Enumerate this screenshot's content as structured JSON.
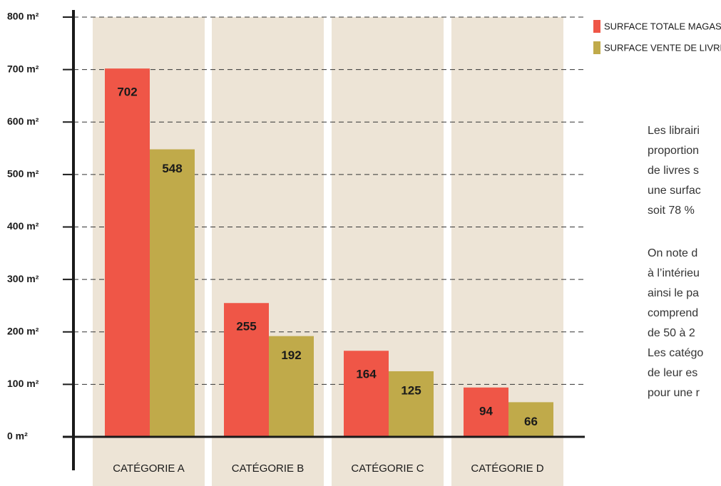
{
  "chart_data": {
    "type": "bar",
    "categories": [
      "CATÉGORIE A",
      "CATÉGORIE B",
      "CATÉGORIE C",
      "CATÉGORIE D"
    ],
    "series": [
      {
        "name": "SURFACE TOTALE MAGASIN",
        "color": "#ef5647",
        "values": [
          702,
          255,
          164,
          94
        ]
      },
      {
        "name": "SURFACE VENTE DE LIVRES",
        "color": "#c0aa4a",
        "values": [
          548,
          192,
          125,
          66
        ]
      }
    ],
    "ylim": [
      0,
      800
    ],
    "yticks": [
      {
        "value": 0,
        "label": "0 m²"
      },
      {
        "value": 100,
        "label": "100 m²"
      },
      {
        "value": 200,
        "label": "200 m²"
      },
      {
        "value": 300,
        "label": "300 m²"
      },
      {
        "value": 400,
        "label": "400 m²"
      },
      {
        "value": 500,
        "label": "500 m²"
      },
      {
        "value": 600,
        "label": "600 m²"
      },
      {
        "value": 700,
        "label": "700 m²"
      },
      {
        "value": 800,
        "label": "800 m²"
      }
    ],
    "grid": true,
    "legend": "top-right",
    "notes": [
      "Les librairi",
      "proportion",
      "de livres s",
      "une surfac",
      "soit 78 %",
      "On note d",
      "à l’intérieu",
      "ainsi le pa",
      "comprend",
      "de 50 à 2",
      "Les catégo",
      "de leur es",
      "pour une r"
    ]
  }
}
